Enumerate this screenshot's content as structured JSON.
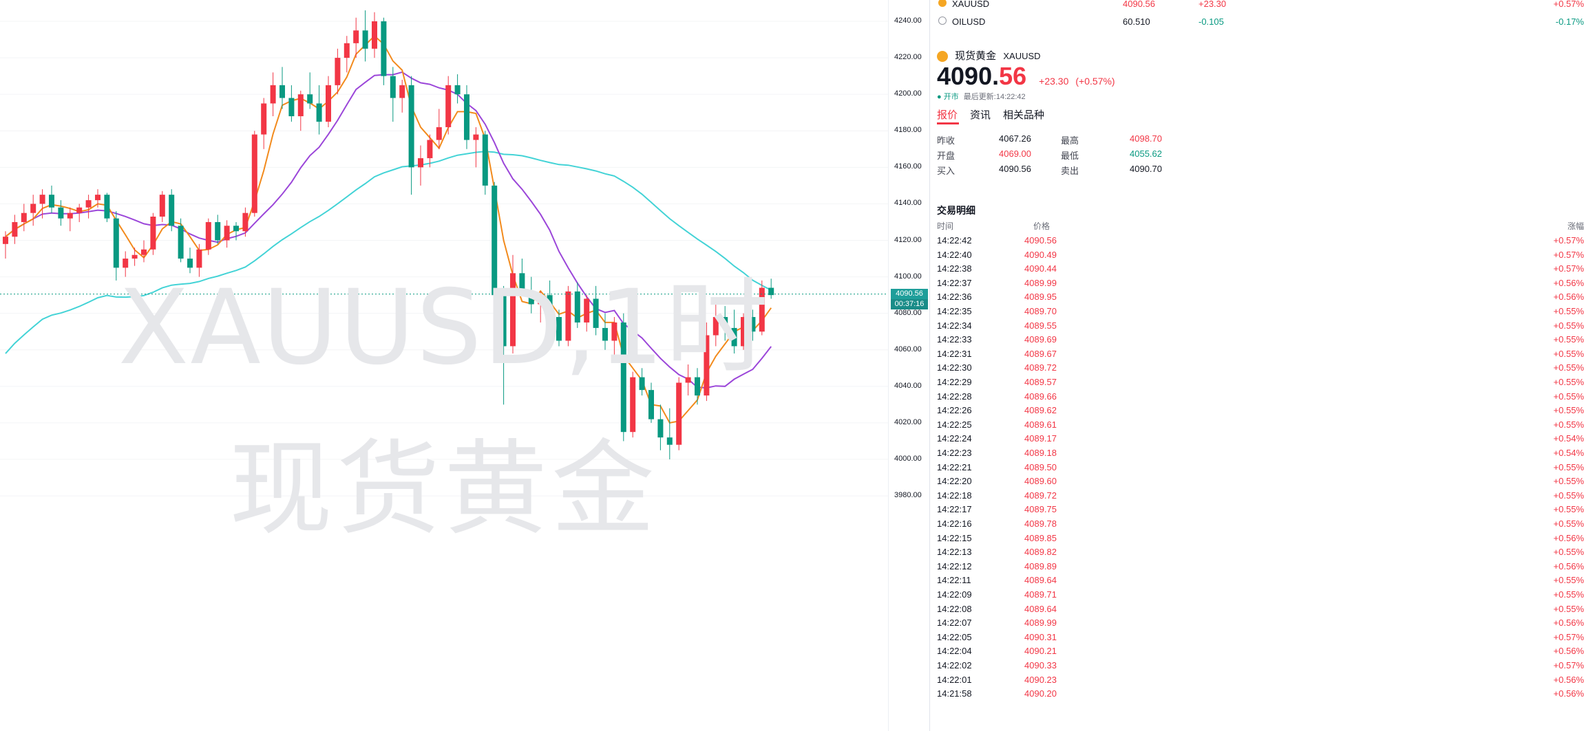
{
  "chart_data": {
    "type": "candlestick",
    "watermark": [
      "XAUUSD,1时",
      "现货黄金"
    ],
    "y_axis_ticks": [
      "4240.00",
      "4220.00",
      "4200.00",
      "4180.00",
      "4160.00",
      "4140.00",
      "4120.00",
      "4100.00",
      "4080.00",
      "4060.00",
      "4040.00",
      "4020.00",
      "4000.00",
      "3980.00"
    ],
    "ylim": [
      3980,
      4247
    ],
    "last_price_label": "4090.56",
    "countdown_label": "00:37:16",
    "colors": {
      "up": "#f23645",
      "down": "#089981",
      "ma_fast": "#f28a1c",
      "ma_mid": "#9b46d9",
      "ma_slow": "#43d3d6",
      "last_line": "#089981"
    },
    "candles": [
      [
        4118,
        4125,
        4110,
        4122
      ],
      [
        4122,
        4134,
        4118,
        4130
      ],
      [
        4130,
        4140,
        4125,
        4135
      ],
      [
        4135,
        4145,
        4128,
        4140
      ],
      [
        4140,
        4148,
        4132,
        4145
      ],
      [
        4145,
        4150,
        4135,
        4138
      ],
      [
        4138,
        4142,
        4128,
        4132
      ],
      [
        4132,
        4138,
        4125,
        4135
      ],
      [
        4135,
        4140,
        4130,
        4138
      ],
      [
        4138,
        4145,
        4132,
        4142
      ],
      [
        4142,
        4148,
        4138,
        4145
      ],
      [
        4145,
        4146,
        4130,
        4132
      ],
      [
        4132,
        4136,
        4098,
        4105
      ],
      [
        4105,
        4114,
        4100,
        4110
      ],
      [
        4110,
        4116,
        4106,
        4112
      ],
      [
        4112,
        4120,
        4108,
        4115
      ],
      [
        4115,
        4135,
        4112,
        4133
      ],
      [
        4133,
        4147,
        4130,
        4145
      ],
      [
        4145,
        4148,
        4125,
        4128
      ],
      [
        4128,
        4132,
        4108,
        4110
      ],
      [
        4110,
        4116,
        4102,
        4105
      ],
      [
        4105,
        4118,
        4100,
        4115
      ],
      [
        4115,
        4132,
        4112,
        4130
      ],
      [
        4130,
        4134,
        4118,
        4120
      ],
      [
        4120,
        4131,
        4116,
        4128
      ],
      [
        4128,
        4130,
        4120,
        4125
      ],
      [
        4125,
        4138,
        4122,
        4135
      ],
      [
        4135,
        4180,
        4133,
        4178
      ],
      [
        4178,
        4198,
        4170,
        4195
      ],
      [
        4195,
        4212,
        4188,
        4205
      ],
      [
        4205,
        4215,
        4192,
        4198
      ],
      [
        4198,
        4205,
        4185,
        4188
      ],
      [
        4188,
        4202,
        4180,
        4200
      ],
      [
        4200,
        4212,
        4192,
        4195
      ],
      [
        4195,
        4205,
        4178,
        4185
      ],
      [
        4185,
        4210,
        4182,
        4205
      ],
      [
        4205,
        4225,
        4200,
        4220
      ],
      [
        4220,
        4232,
        4212,
        4228
      ],
      [
        4228,
        4242,
        4220,
        4235
      ],
      [
        4235,
        4246,
        4218,
        4225
      ],
      [
        4225,
        4245,
        4220,
        4240
      ],
      [
        4240,
        4242,
        4205,
        4210
      ],
      [
        4210,
        4215,
        4185,
        4198
      ],
      [
        4198,
        4208,
        4190,
        4205
      ],
      [
        4205,
        4210,
        4145,
        4160
      ],
      [
        4160,
        4172,
        4150,
        4165
      ],
      [
        4165,
        4178,
        4160,
        4175
      ],
      [
        4175,
        4192,
        4170,
        4182
      ],
      [
        4182,
        4210,
        4178,
        4205
      ],
      [
        4205,
        4211,
        4195,
        4200
      ],
      [
        4200,
        4205,
        4170,
        4175
      ],
      [
        4175,
        4182,
        4160,
        4178
      ],
      [
        4178,
        4180,
        4145,
        4150
      ],
      [
        4150,
        4152,
        4080,
        4090
      ],
      [
        4090,
        4095,
        4030,
        4062
      ],
      [
        4062,
        4112,
        4058,
        4102
      ],
      [
        4102,
        4110,
        4090,
        4092
      ],
      [
        4092,
        4100,
        4080,
        4085
      ],
      [
        4085,
        4092,
        4075,
        4090
      ],
      [
        4090,
        4098,
        4070,
        4078
      ],
      [
        4078,
        4082,
        4062,
        4065
      ],
      [
        4065,
        4095,
        4062,
        4092
      ],
      [
        4092,
        4097,
        4072,
        4075
      ],
      [
        4075,
        4090,
        4070,
        4088
      ],
      [
        4088,
        4095,
        4068,
        4072
      ],
      [
        4072,
        4080,
        4060,
        4065
      ],
      [
        4065,
        4078,
        4055,
        4075
      ],
      [
        4075,
        4080,
        4010,
        4015
      ],
      [
        4015,
        4048,
        4012,
        4045
      ],
      [
        4045,
        4050,
        4035,
        4038
      ],
      [
        4038,
        4042,
        4020,
        4022
      ],
      [
        4022,
        4030,
        4005,
        4012
      ],
      [
        4012,
        4028,
        4000,
        4008
      ],
      [
        4008,
        4045,
        4005,
        4042
      ],
      [
        4042,
        4052,
        4035,
        4045
      ],
      [
        4045,
        4050,
        4030,
        4035
      ],
      [
        4035,
        4075,
        4032,
        4068
      ],
      [
        4068,
        4085,
        4062,
        4078
      ],
      [
        4078,
        4084,
        4065,
        4072
      ],
      [
        4072,
        4082,
        4058,
        4062
      ],
      [
        4062,
        4080,
        4060,
        4078
      ],
      [
        4078,
        4082,
        4065,
        4070
      ],
      [
        4070,
        4098,
        4068,
        4094
      ],
      [
        4094,
        4099,
        4088,
        4090
      ]
    ]
  },
  "watchlist": [
    {
      "symbol": "XAUUSD",
      "last": "4090.56",
      "change": "+23.30",
      "change_pct": "+0.57%"
    },
    {
      "symbol": "OILUSD",
      "last": "60.510",
      "change": "-0.105",
      "change_pct": "-0.17%"
    }
  ],
  "symbol_detail": {
    "name": "现货黄金",
    "code": "XAUUSD",
    "price_main": "4090.",
    "price_tail": "56",
    "change": "+23.30",
    "change_pct": "(+0.57%)",
    "status": "开市",
    "last_update": "最后更新:14:22:42",
    "tabs": [
      "报价",
      "资讯",
      "相关品种"
    ],
    "stats": [
      {
        "label": "昨收",
        "value": "4067.26",
        "label2": "最高",
        "value2": "4098.70"
      },
      {
        "label": "开盘",
        "value": "4069.00",
        "label2": "最低",
        "value2": "4055.62"
      },
      {
        "label": "买入",
        "value": "4090.56",
        "label2": "卖出",
        "value2": "4090.70"
      }
    ]
  },
  "trade_detail": {
    "title": "交易明细",
    "columns": [
      "时间",
      "价格",
      "涨幅"
    ],
    "rows": [
      [
        "14:22:42",
        "4090.56",
        "+0.57%"
      ],
      [
        "14:22:40",
        "4090.49",
        "+0.57%"
      ],
      [
        "14:22:38",
        "4090.44",
        "+0.57%"
      ],
      [
        "14:22:37",
        "4089.99",
        "+0.56%"
      ],
      [
        "14:22:36",
        "4089.95",
        "+0.56%"
      ],
      [
        "14:22:35",
        "4089.70",
        "+0.55%"
      ],
      [
        "14:22:34",
        "4089.55",
        "+0.55%"
      ],
      [
        "14:22:33",
        "4089.69",
        "+0.55%"
      ],
      [
        "14:22:31",
        "4089.67",
        "+0.55%"
      ],
      [
        "14:22:30",
        "4089.72",
        "+0.55%"
      ],
      [
        "14:22:29",
        "4089.57",
        "+0.55%"
      ],
      [
        "14:22:28",
        "4089.66",
        "+0.55%"
      ],
      [
        "14:22:26",
        "4089.62",
        "+0.55%"
      ],
      [
        "14:22:25",
        "4089.61",
        "+0.55%"
      ],
      [
        "14:22:24",
        "4089.17",
        "+0.54%"
      ],
      [
        "14:22:23",
        "4089.18",
        "+0.54%"
      ],
      [
        "14:22:21",
        "4089.50",
        "+0.55%"
      ],
      [
        "14:22:20",
        "4089.60",
        "+0.55%"
      ],
      [
        "14:22:18",
        "4089.72",
        "+0.55%"
      ],
      [
        "14:22:17",
        "4089.75",
        "+0.55%"
      ],
      [
        "14:22:16",
        "4089.78",
        "+0.55%"
      ],
      [
        "14:22:15",
        "4089.85",
        "+0.56%"
      ],
      [
        "14:22:13",
        "4089.82",
        "+0.55%"
      ],
      [
        "14:22:12",
        "4089.89",
        "+0.56%"
      ],
      [
        "14:22:11",
        "4089.64",
        "+0.55%"
      ],
      [
        "14:22:09",
        "4089.71",
        "+0.55%"
      ],
      [
        "14:22:08",
        "4089.64",
        "+0.55%"
      ],
      [
        "14:22:07",
        "4089.99",
        "+0.56%"
      ],
      [
        "14:22:05",
        "4090.31",
        "+0.57%"
      ],
      [
        "14:22:04",
        "4090.21",
        "+0.56%"
      ],
      [
        "14:22:02",
        "4090.33",
        "+0.57%"
      ],
      [
        "14:22:01",
        "4090.23",
        "+0.56%"
      ],
      [
        "14:21:58",
        "4090.20",
        "+0.56%"
      ]
    ]
  }
}
